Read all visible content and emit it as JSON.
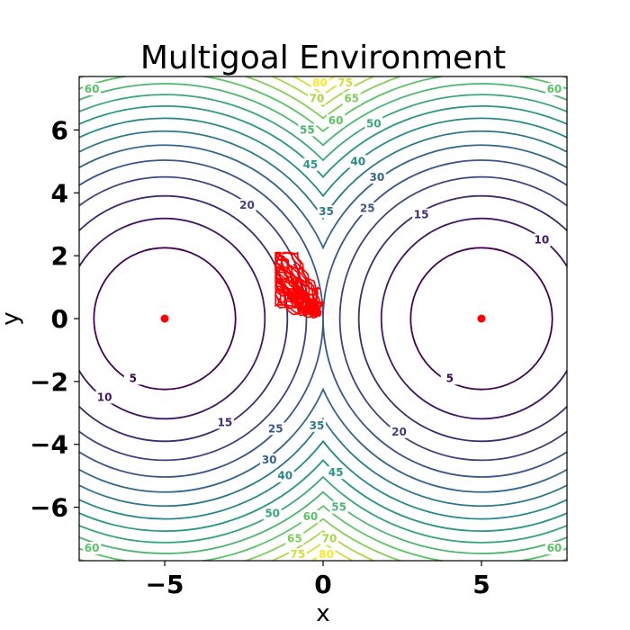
{
  "chart_data": {
    "type": "contour",
    "title": "Multigoal Environment",
    "xlabel": "x",
    "ylabel": "y",
    "xlim": [
      -7.7,
      7.7
    ],
    "ylim": [
      -7.7,
      7.7
    ],
    "x_ticks": [
      -5,
      0,
      5
    ],
    "x_tick_labels": [
      "−5",
      "0",
      "5"
    ],
    "y_ticks": [
      -6,
      -4,
      -2,
      0,
      2,
      4,
      6
    ],
    "y_tick_labels": [
      "−6",
      "−4",
      "−2",
      "0",
      "2",
      "4",
      "6"
    ],
    "goals": [
      {
        "x": -5,
        "y": 0
      },
      {
        "x": 5,
        "y": 0
      }
    ],
    "goal_color": "#ff0000",
    "contour_levels": [
      5,
      10,
      15,
      20,
      25,
      30,
      35,
      40,
      45,
      50,
      55,
      60,
      65,
      70,
      75,
      80
    ],
    "contour_function": "min((x-5)^2+y^2, (x+5)^2+y^2)",
    "colormap": "viridis",
    "contour_labels": [
      {
        "text": "5",
        "x": -6.0,
        "y": -1.9
      },
      {
        "text": "5",
        "x": 4.0,
        "y": -1.9
      },
      {
        "text": "10",
        "x": -6.9,
        "y": -2.5
      },
      {
        "text": "10",
        "x": 6.9,
        "y": 2.5
      },
      {
        "text": "15",
        "x": -3.1,
        "y": -3.3
      },
      {
        "text": "15",
        "x": 3.1,
        "y": 3.3
      },
      {
        "text": "20",
        "x": -2.4,
        "y": 3.6
      },
      {
        "text": "20",
        "x": 2.4,
        "y": -3.6
      },
      {
        "text": "25",
        "x": -1.5,
        "y": -3.5
      },
      {
        "text": "25",
        "x": 1.4,
        "y": 3.5
      },
      {
        "text": "30",
        "x": -1.7,
        "y": -4.5
      },
      {
        "text": "30",
        "x": 1.7,
        "y": 4.5
      },
      {
        "text": "35",
        "x": 0.1,
        "y": 3.4
      },
      {
        "text": "35",
        "x": -0.2,
        "y": -3.4
      },
      {
        "text": "40",
        "x": 1.1,
        "y": 5.0
      },
      {
        "text": "40",
        "x": -1.2,
        "y": -5.0
      },
      {
        "text": "45",
        "x": -0.4,
        "y": 4.9
      },
      {
        "text": "45",
        "x": 0.4,
        "y": -4.9
      },
      {
        "text": "50",
        "x": 1.6,
        "y": 6.2
      },
      {
        "text": "50",
        "x": -1.6,
        "y": -6.2
      },
      {
        "text": "55",
        "x": -0.5,
        "y": 6.0
      },
      {
        "text": "55",
        "x": 0.5,
        "y": -6.0
      },
      {
        "text": "60",
        "x": 0.4,
        "y": 6.3
      },
      {
        "text": "60",
        "x": -0.4,
        "y": -6.3
      },
      {
        "text": "60",
        "x": -7.3,
        "y": 7.3
      },
      {
        "text": "60",
        "x": 7.3,
        "y": 7.3
      },
      {
        "text": "60",
        "x": -7.3,
        "y": -7.3
      },
      {
        "text": "60",
        "x": 7.3,
        "y": -7.3
      },
      {
        "text": "65",
        "x": 0.9,
        "y": 7.0
      },
      {
        "text": "65",
        "x": -0.9,
        "y": -7.0
      },
      {
        "text": "70",
        "x": -0.2,
        "y": 7.0
      },
      {
        "text": "70",
        "x": 0.2,
        "y": -7.0
      },
      {
        "text": "75",
        "x": 0.7,
        "y": 7.5
      },
      {
        "text": "75",
        "x": -0.8,
        "y": -7.5
      },
      {
        "text": "80",
        "x": -0.1,
        "y": 7.5
      },
      {
        "text": "80",
        "x": 0.1,
        "y": -7.5
      }
    ],
    "trajectory_color": "#ff0000",
    "trajectory_region": {
      "x_range": [
        -1.5,
        0.3
      ],
      "y_range": [
        -0.4,
        2.1
      ]
    },
    "grid": false
  }
}
